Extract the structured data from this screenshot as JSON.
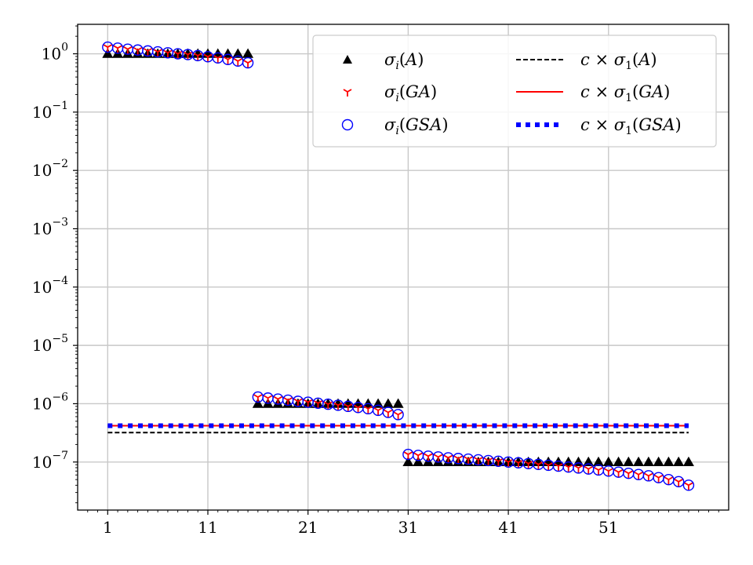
{
  "chart_data": {
    "type": "scatter",
    "title": "",
    "xlabel": "",
    "ylabel": "",
    "yscale": "log",
    "xlim": [
      -2,
      63
    ],
    "ylim": [
      1.5e-08,
      3.2
    ],
    "grid": true,
    "legend_position": "top-right",
    "x_ticks": [
      1,
      11,
      21,
      31,
      41,
      51
    ],
    "y_ticks": [
      {
        "value": 1,
        "base": "10",
        "exp": "0"
      },
      {
        "value": 0.1,
        "base": "10",
        "exp": "−1"
      },
      {
        "value": 0.01,
        "base": "10",
        "exp": "−2"
      },
      {
        "value": 0.001,
        "base": "10",
        "exp": "−3"
      },
      {
        "value": 0.0001,
        "base": "10",
        "exp": "−4"
      },
      {
        "value": 1e-05,
        "base": "10",
        "exp": "−5"
      },
      {
        "value": 1e-06,
        "base": "10",
        "exp": "−6"
      },
      {
        "value": 1e-07,
        "base": "10",
        "exp": "−7"
      }
    ],
    "series": [
      {
        "name": "σi(A)",
        "marker": "triangle",
        "color": "#000000",
        "segments": [
          {
            "x_start": 1,
            "x_end": 15,
            "values": [
              1,
              1,
              1,
              1,
              1,
              1,
              1,
              1,
              1,
              1,
              1,
              1,
              1,
              1,
              1
            ]
          },
          {
            "x_start": 16,
            "x_end": 30,
            "values": [
              1e-06,
              1e-06,
              1e-06,
              1e-06,
              1e-06,
              1e-06,
              1e-06,
              1e-06,
              1e-06,
              1e-06,
              1e-06,
              1e-06,
              1e-06,
              1e-06,
              1e-06
            ]
          },
          {
            "x_start": 31,
            "x_end": 59,
            "values": [
              1e-07,
              1e-07,
              1e-07,
              1e-07,
              1e-07,
              1e-07,
              1e-07,
              1e-07,
              1e-07,
              1e-07,
              1e-07,
              1e-07,
              1e-07,
              1e-07,
              1e-07,
              1e-07,
              1e-07,
              1e-07,
              1e-07,
              1e-07,
              1e-07,
              1e-07,
              1e-07,
              1e-07,
              1e-07,
              1e-07,
              1e-07,
              1e-07,
              1e-07
            ]
          }
        ]
      },
      {
        "name": "σi(GA)",
        "marker": "tri-down",
        "color": "#ff0000",
        "segments": [
          {
            "x_start": 1,
            "x_end": 15,
            "values": [
              1.3,
              1.25,
              1.2,
              1.16,
              1.12,
              1.08,
              1.04,
              1.0,
              0.97,
              0.93,
              0.89,
              0.85,
              0.8,
              0.75,
              0.7
            ]
          },
          {
            "x_start": 16,
            "x_end": 30,
            "values": [
              1.3e-06,
              1.25e-06,
              1.2e-06,
              1.15e-06,
              1.1e-06,
              1.06e-06,
              1.02e-06,
              9.8e-07,
              9.4e-07,
              9e-07,
              8.6e-07,
              8.2e-07,
              7.7e-07,
              7.1e-07,
              6.5e-07
            ]
          },
          {
            "x_start": 31,
            "x_end": 59,
            "values": [
              1.35e-07,
              1.3e-07,
              1.26e-07,
              1.22e-07,
              1.18e-07,
              1.15e-07,
              1.12e-07,
              1.09e-07,
              1.06e-07,
              1.03e-07,
              1e-07,
              9.7e-08,
              9.4e-08,
              9.1e-08,
              8.8e-08,
              8.5e-08,
              8.2e-08,
              7.9e-08,
              7.6e-08,
              7.3e-08,
              7e-08,
              6.7e-08,
              6.4e-08,
              6.1e-08,
              5.8e-08,
              5.4e-08,
              5e-08,
              4.6e-08,
              4e-08
            ]
          }
        ]
      },
      {
        "name": "σi(GSA)",
        "marker": "circle",
        "color": "#0000ff",
        "segments": [
          {
            "x_start": 1,
            "x_end": 15,
            "values": [
              1.3,
              1.25,
              1.2,
              1.16,
              1.12,
              1.08,
              1.04,
              1.0,
              0.97,
              0.93,
              0.89,
              0.85,
              0.8,
              0.75,
              0.7
            ]
          },
          {
            "x_start": 16,
            "x_end": 30,
            "values": [
              1.3e-06,
              1.25e-06,
              1.2e-06,
              1.15e-06,
              1.1e-06,
              1.06e-06,
              1.02e-06,
              9.8e-07,
              9.4e-07,
              9e-07,
              8.6e-07,
              8.2e-07,
              7.7e-07,
              7.1e-07,
              6.5e-07
            ]
          },
          {
            "x_start": 31,
            "x_end": 59,
            "values": [
              1.35e-07,
              1.3e-07,
              1.26e-07,
              1.22e-07,
              1.18e-07,
              1.15e-07,
              1.12e-07,
              1.09e-07,
              1.06e-07,
              1.03e-07,
              1e-07,
              9.7e-08,
              9.4e-08,
              9.1e-08,
              8.8e-08,
              8.5e-08,
              8.2e-08,
              7.9e-08,
              7.6e-08,
              7.3e-08,
              7e-08,
              6.7e-08,
              6.4e-08,
              6.1e-08,
              5.8e-08,
              5.4e-08,
              5e-08,
              4.6e-08,
              4e-08
            ]
          }
        ]
      }
    ],
    "reference_lines": [
      {
        "name": "c × σ1(A)",
        "value": 3.2e-07,
        "x_start": 1,
        "x_end": 59,
        "color": "#000000",
        "style": "dashed"
      },
      {
        "name": "c × σ1(GA)",
        "value": 4.2e-07,
        "x_start": 1,
        "x_end": 59,
        "color": "#ff0000",
        "style": "solid"
      },
      {
        "name": "c × σ1(GSA)",
        "value": 4.2e-07,
        "x_start": 1,
        "x_end": 59,
        "color": "#0000ff",
        "style": "dotted"
      }
    ],
    "legend": {
      "entries": [
        {
          "key": "sA",
          "symbol": "triangle",
          "color": "#000000",
          "base": "σ",
          "sub": "i",
          "arg": "A",
          "prefix": ""
        },
        {
          "key": "sGA",
          "symbol": "tri-down",
          "color": "#ff0000",
          "base": "σ",
          "sub": "i",
          "arg": "GA",
          "prefix": ""
        },
        {
          "key": "sGSA",
          "symbol": "circle",
          "color": "#0000ff",
          "base": "σ",
          "sub": "i",
          "arg": "GSA",
          "prefix": ""
        },
        {
          "key": "cA",
          "symbol": "dashed",
          "color": "#000000",
          "base": "σ",
          "sub": "1",
          "arg": "A",
          "prefix": "c"
        },
        {
          "key": "cGA",
          "symbol": "solid",
          "color": "#ff0000",
          "base": "σ",
          "sub": "1",
          "arg": "GA",
          "prefix": "c"
        },
        {
          "key": "cGSA",
          "symbol": "dotted",
          "color": "#0000ff",
          "base": "σ",
          "sub": "1",
          "arg": "GSA",
          "prefix": "c"
        }
      ]
    }
  }
}
